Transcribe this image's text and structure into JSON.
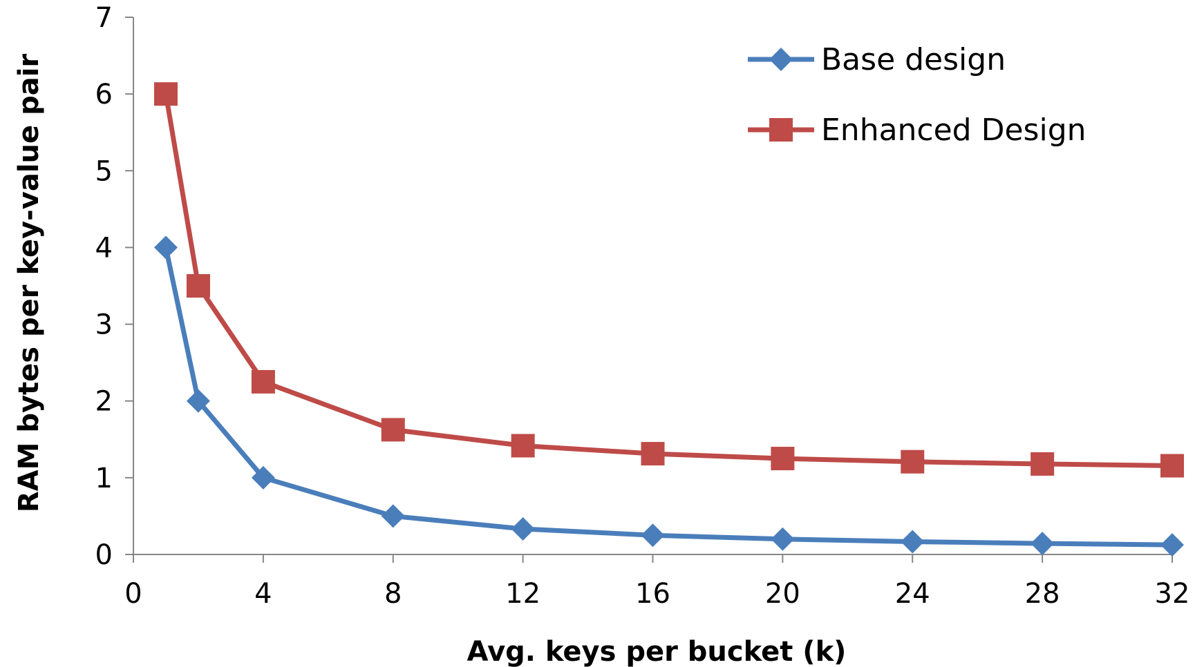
{
  "chart_data": {
    "type": "line",
    "title": "",
    "xlabel": "Avg. keys per bucket (k)",
    "ylabel": "RAM bytes per key-value pair",
    "xlim": [
      0,
      32
    ],
    "ylim": [
      0,
      7
    ],
    "xticks": [
      0,
      4,
      8,
      12,
      16,
      20,
      24,
      28,
      32
    ],
    "yticks": [
      0,
      1,
      2,
      3,
      4,
      5,
      6,
      7
    ],
    "grid": false,
    "legend_position": "top-right",
    "x": [
      1,
      2,
      4,
      8,
      12,
      16,
      20,
      24,
      28,
      32
    ],
    "series": [
      {
        "name": "Base design",
        "color": "#4a7ebb",
        "marker": "diamond",
        "values": [
          4,
          2,
          1,
          0.5,
          0.333,
          0.25,
          0.2,
          0.167,
          0.143,
          0.125
        ]
      },
      {
        "name": "Enhanced Design",
        "color": "#be4b48",
        "marker": "square",
        "values": [
          6,
          3.5,
          2.25,
          1.625,
          1.417,
          1.313,
          1.25,
          1.208,
          1.179,
          1.156
        ]
      }
    ]
  }
}
